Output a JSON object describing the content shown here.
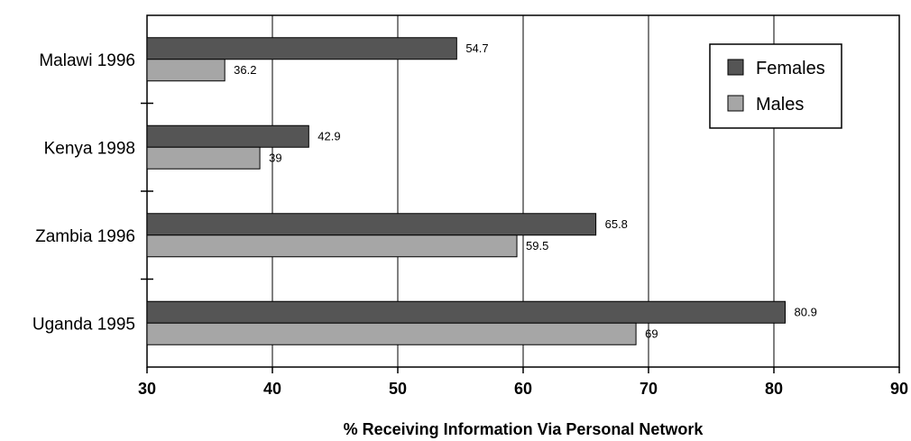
{
  "chart_data": {
    "type": "bar",
    "orientation": "horizontal",
    "categories": [
      "Malawi 1996",
      "Kenya 1998",
      "Zambia 1996",
      "Uganda 1995"
    ],
    "series": [
      {
        "name": "Females",
        "values": [
          54.7,
          42.9,
          65.8,
          80.9
        ],
        "color": "#555555"
      },
      {
        "name": "Males",
        "values": [
          36.2,
          39,
          59.5,
          69
        ],
        "color": "#a6a6a6"
      }
    ],
    "value_labels": {
      "Females": [
        "54.7",
        "42.9",
        "65.8",
        "80.9"
      ],
      "Males": [
        "36.2",
        "39",
        "59.5",
        "69"
      ]
    },
    "xlabel": "% Receiving Information Via Personal Network",
    "xlim": [
      30,
      90
    ],
    "xticks": [
      "30",
      "40",
      "50",
      "60",
      "70",
      "80",
      "90"
    ],
    "grid": "vertical",
    "legend": "top-right"
  }
}
